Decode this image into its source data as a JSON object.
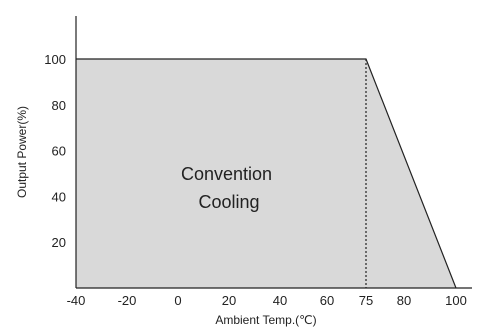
{
  "chart_data": {
    "type": "area",
    "xlabel": "Ambient Temp.(℃)",
    "ylabel": "Output Power(%)",
    "xticks": [
      -40,
      -20,
      0,
      20,
      40,
      60,
      75,
      80,
      100
    ],
    "yticks": [
      20,
      40,
      60,
      80,
      100
    ],
    "xlim": [
      -40,
      100
    ],
    "ylim": [
      0,
      100
    ],
    "grid": false,
    "series": [
      {
        "x": [
          -40,
          75,
          100
        ],
        "y": [
          100,
          100,
          0
        ]
      }
    ],
    "reference_lines": [
      {
        "x": 75,
        "style": "dotted"
      }
    ],
    "annotation": {
      "lines": [
        "Convention",
        "Cooling"
      ],
      "x": 20,
      "y": 42
    },
    "colors": {
      "fill": "#d9d9d9",
      "line": "#222222"
    }
  }
}
